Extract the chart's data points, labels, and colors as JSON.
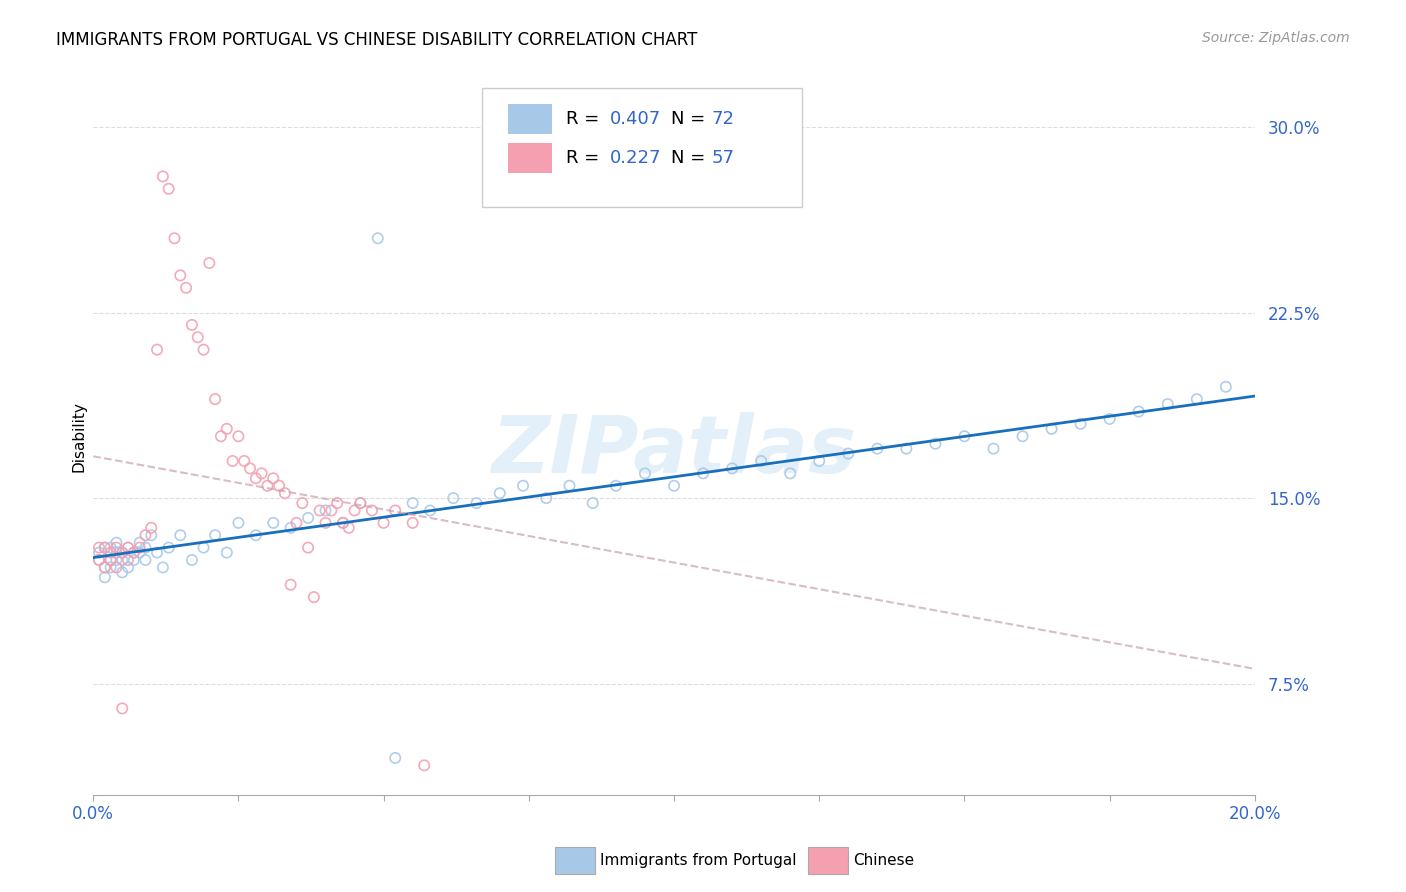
{
  "title": "IMMIGRANTS FROM PORTUGAL VS CHINESE DISABILITY CORRELATION CHART",
  "source": "Source: ZipAtlas.com",
  "ylabel": "Disability",
  "xlim": [
    0.0,
    0.2
  ],
  "ylim": [
    0.03,
    0.32
  ],
  "yticks": [
    0.075,
    0.15,
    0.225,
    0.3
  ],
  "ytick_labels": [
    "7.5%",
    "15.0%",
    "22.5%",
    "30.0%"
  ],
  "xticks": [
    0.0,
    0.025,
    0.05,
    0.075,
    0.1,
    0.125,
    0.15,
    0.175,
    0.2
  ],
  "color_blue": "#a8c8e8",
  "color_pink": "#f4a0b0",
  "color_line_blue": "#1a6fbd",
  "color_line_pink": "#c0a0b0",
  "color_text_blue": "#3366cc",
  "watermark": "ZIPatlas",
  "port_x": [
    0.001,
    0.001,
    0.002,
    0.002,
    0.002,
    0.003,
    0.003,
    0.003,
    0.004,
    0.004,
    0.004,
    0.005,
    0.005,
    0.005,
    0.006,
    0.006,
    0.007,
    0.007,
    0.008,
    0.008,
    0.009,
    0.009,
    0.01,
    0.011,
    0.012,
    0.013,
    0.015,
    0.017,
    0.019,
    0.021,
    0.023,
    0.025,
    0.028,
    0.031,
    0.034,
    0.037,
    0.04,
    0.043,
    0.046,
    0.049,
    0.052,
    0.055,
    0.058,
    0.062,
    0.066,
    0.07,
    0.074,
    0.078,
    0.082,
    0.086,
    0.09,
    0.095,
    0.1,
    0.105,
    0.11,
    0.115,
    0.12,
    0.125,
    0.13,
    0.135,
    0.14,
    0.145,
    0.15,
    0.155,
    0.16,
    0.165,
    0.17,
    0.175,
    0.18,
    0.185,
    0.19,
    0.195
  ],
  "port_y": [
    0.125,
    0.128,
    0.122,
    0.13,
    0.118,
    0.125,
    0.13,
    0.122,
    0.128,
    0.125,
    0.132,
    0.12,
    0.128,
    0.125,
    0.13,
    0.122,
    0.128,
    0.125,
    0.132,
    0.128,
    0.125,
    0.13,
    0.135,
    0.128,
    0.122,
    0.13,
    0.135,
    0.125,
    0.13,
    0.135,
    0.128,
    0.14,
    0.135,
    0.14,
    0.138,
    0.142,
    0.145,
    0.14,
    0.148,
    0.255,
    0.045,
    0.148,
    0.145,
    0.15,
    0.148,
    0.152,
    0.155,
    0.15,
    0.155,
    0.148,
    0.155,
    0.16,
    0.155,
    0.16,
    0.162,
    0.165,
    0.16,
    0.165,
    0.168,
    0.17,
    0.17,
    0.172,
    0.175,
    0.17,
    0.175,
    0.178,
    0.18,
    0.182,
    0.185,
    0.188,
    0.19,
    0.195
  ],
  "chin_x": [
    0.001,
    0.001,
    0.002,
    0.002,
    0.003,
    0.003,
    0.004,
    0.004,
    0.005,
    0.005,
    0.006,
    0.006,
    0.007,
    0.008,
    0.009,
    0.01,
    0.011,
    0.012,
    0.013,
    0.014,
    0.015,
    0.016,
    0.017,
    0.018,
    0.019,
    0.02,
    0.021,
    0.022,
    0.023,
    0.024,
    0.025,
    0.026,
    0.027,
    0.028,
    0.029,
    0.03,
    0.031,
    0.032,
    0.033,
    0.034,
    0.035,
    0.036,
    0.037,
    0.038,
    0.039,
    0.04,
    0.041,
    0.042,
    0.043,
    0.044,
    0.045,
    0.046,
    0.048,
    0.05,
    0.052,
    0.055,
    0.057
  ],
  "chin_y": [
    0.125,
    0.13,
    0.122,
    0.13,
    0.128,
    0.125,
    0.13,
    0.122,
    0.128,
    0.065,
    0.125,
    0.13,
    0.128,
    0.13,
    0.135,
    0.138,
    0.21,
    0.28,
    0.275,
    0.255,
    0.24,
    0.235,
    0.22,
    0.215,
    0.21,
    0.245,
    0.19,
    0.175,
    0.178,
    0.165,
    0.175,
    0.165,
    0.162,
    0.158,
    0.16,
    0.155,
    0.158,
    0.155,
    0.152,
    0.115,
    0.14,
    0.148,
    0.13,
    0.11,
    0.145,
    0.14,
    0.145,
    0.148,
    0.14,
    0.138,
    0.145,
    0.148,
    0.145,
    0.14,
    0.145,
    0.14,
    0.042
  ]
}
